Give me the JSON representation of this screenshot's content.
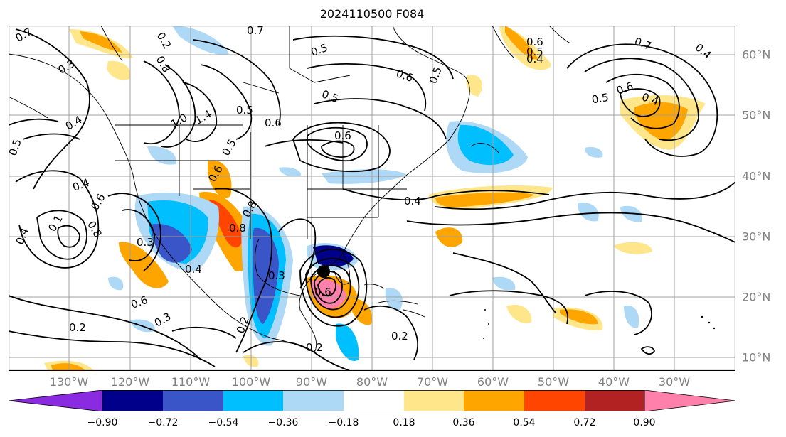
{
  "title": "2024110500 F084",
  "map": {
    "lon_labels": [
      "130°W",
      "120°W",
      "110°W",
      "100°W",
      "90°W",
      "80°W",
      "70°W",
      "60°W",
      "50°W",
      "40°W",
      "30°W"
    ],
    "lat_labels": [
      "60°N",
      "50°N",
      "40°N",
      "30°N",
      "20°N",
      "10°N"
    ],
    "contour_labels": [
      "0.7",
      "0.7",
      "0.2",
      "0.5",
      "0.6",
      "0.5",
      "0.6",
      "0.8",
      "0.3",
      "0.4",
      "0.5",
      "0.4",
      "0.7",
      "0.6",
      "0.5",
      "0.6",
      "0.4",
      "0.5",
      "0.4",
      "1.0",
      "1.4",
      "0.6",
      "0.5",
      "0.5",
      "0.4",
      "0.4",
      "0.6",
      "0.1",
      "0.8",
      "0.6",
      "0.8",
      "0.3",
      "0.4",
      "0.6",
      "0.3",
      "0.2",
      "0.3",
      "0.2",
      "0.2",
      "0.8",
      "0.5",
      "0.4",
      "0.6",
      "0.2"
    ],
    "storm_marker": "hurricane-center"
  },
  "colorbar": {
    "tick_labels": [
      "−0.90",
      "−0.72",
      "−0.54",
      "−0.36",
      "−0.18",
      "0.18",
      "0.36",
      "0.54",
      "0.72",
      "0.90"
    ],
    "colors": [
      "#8a2be2",
      "#00008b",
      "#3a55c8",
      "#00bfff",
      "#add8f6",
      "#ffffff",
      "#ffe68a",
      "#ffa500",
      "#ff4500",
      "#b22222",
      "#ff80ab"
    ]
  }
}
